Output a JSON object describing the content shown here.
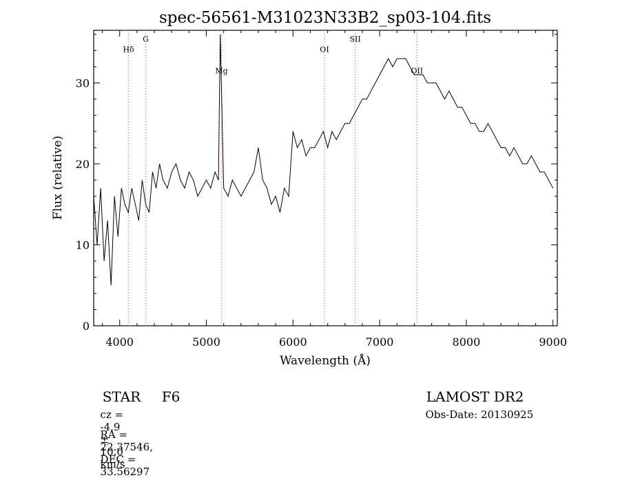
{
  "chart_data": {
    "type": "line",
    "title": "spec-56561-M31023N33B2_sp03-104.fits",
    "xlabel": "Wavelength (Å)",
    "ylabel": "Flux (relative)",
    "xlim": [
      3700,
      9050
    ],
    "ylim": [
      0,
      36.5
    ],
    "xticks": [
      4000,
      5000,
      6000,
      7000,
      8000,
      9000
    ],
    "yticks": [
      0,
      10,
      20,
      30
    ],
    "minor_x_step": 200,
    "minor_y_step": 2,
    "line_color": "#000000",
    "marker_color": "#e06060",
    "series": [
      {
        "x": [
          3700,
          3740,
          3780,
          3820,
          3860,
          3900,
          3940,
          3980,
          4020,
          4060,
          4100,
          4140,
          4180,
          4220,
          4260,
          4300,
          4340,
          4380,
          4420,
          4460,
          4500,
          4550,
          4600,
          4650,
          4700,
          4750,
          4800,
          4850,
          4900,
          4950,
          5000,
          5050,
          5100,
          5140,
          5160,
          5200,
          5250,
          5300,
          5350,
          5400,
          5450,
          5500,
          5550,
          5600,
          5650,
          5700,
          5750,
          5800,
          5850,
          5900,
          5950,
          6000,
          6050,
          6100,
          6150,
          6200,
          6250,
          6300,
          6350,
          6400,
          6450,
          6500,
          6550,
          6600,
          6650,
          6700,
          6750,
          6800,
          6850,
          6900,
          6950,
          7000,
          7050,
          7100,
          7150,
          7200,
          7250,
          7300,
          7350,
          7400,
          7450,
          7500,
          7550,
          7600,
          7650,
          7700,
          7750,
          7800,
          7850,
          7900,
          7950,
          8000,
          8050,
          8100,
          8150,
          8200,
          8250,
          8300,
          8350,
          8400,
          8450,
          8500,
          8550,
          8600,
          8650,
          8700,
          8750,
          8800,
          8850,
          8900,
          8950,
          9000
        ],
        "y": [
          16,
          10,
          17,
          8,
          13,
          5,
          16,
          11,
          17,
          15,
          14,
          17,
          15,
          13,
          18,
          15,
          14,
          19,
          17,
          20,
          18,
          17,
          19,
          20,
          18,
          17,
          19,
          18,
          16,
          17,
          18,
          17,
          19,
          18,
          36,
          17,
          16,
          18,
          17,
          16,
          17,
          18,
          19,
          22,
          18,
          17,
          15,
          16,
          14,
          17,
          16,
          24,
          22,
          23,
          21,
          22,
          22,
          23,
          24,
          22,
          24,
          23,
          24,
          25,
          25,
          26,
          27,
          28,
          28,
          29,
          30,
          31,
          32,
          33,
          32,
          33,
          33,
          33,
          32,
          31,
          31,
          31,
          30,
          30,
          30,
          29,
          28,
          29,
          28,
          27,
          27,
          26,
          25,
          25,
          24,
          24,
          25,
          24,
          23,
          22,
          22,
          21,
          22,
          21,
          20,
          20,
          21,
          20,
          19,
          19,
          18,
          17
        ]
      }
    ],
    "line_markers": [
      {
        "label": "Hδ",
        "x": 4102,
        "label_y": 33.8
      },
      {
        "label": "G",
        "x": 4300,
        "label_y": 35.1
      },
      {
        "label": "Mg",
        "x": 5175,
        "label_y": 31.2
      },
      {
        "label": "OI",
        "x": 6363,
        "label_y": 33.8
      },
      {
        "label": "SII",
        "x": 6718,
        "label_y": 35.1
      },
      {
        "label": "OII",
        "x": 7430,
        "label_y": 31.2
      }
    ]
  },
  "info": {
    "class_label": "STAR",
    "subclass": "F6",
    "survey": "LAMOST DR2",
    "cz_label": "cz =",
    "cz_value": "-4.9",
    "cz_pm": "±",
    "cz_error": "10.0",
    "cz_unit": "km/s",
    "obs_date": "Obs-Date: 20130925",
    "ra_label": "RA =",
    "ra_value": "22.37546,",
    "dec_label": "DEC =",
    "dec_value": "33.56297"
  }
}
